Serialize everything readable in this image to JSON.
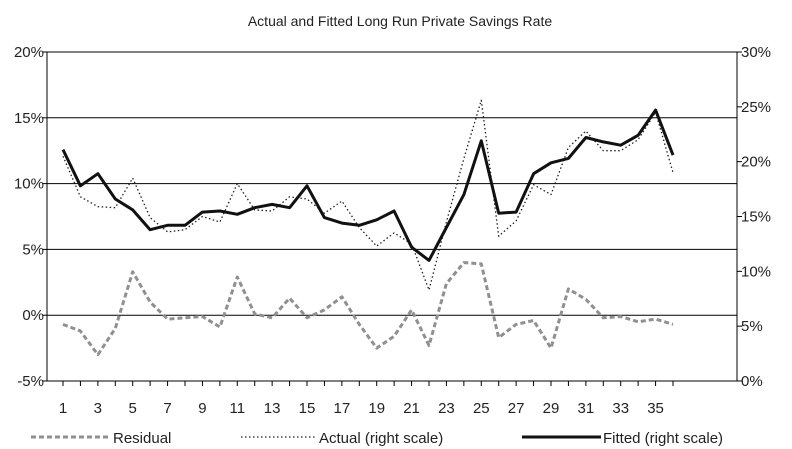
{
  "chart_data": {
    "type": "line",
    "title": "Actual and Fitted Long Run Private Savings Rate",
    "x": [
      1,
      2,
      3,
      4,
      5,
      6,
      7,
      8,
      9,
      10,
      11,
      12,
      13,
      14,
      15,
      16,
      17,
      18,
      19,
      20,
      21,
      22,
      23,
      24,
      25,
      26,
      27,
      28,
      29,
      30,
      31,
      32,
      33,
      34,
      35,
      36
    ],
    "x_tick_labels": [
      "1",
      "3",
      "5",
      "7",
      "9",
      "11",
      "13",
      "15",
      "17",
      "19",
      "21",
      "23",
      "25",
      "27",
      "29",
      "31",
      "33",
      "35"
    ],
    "left_axis": {
      "ylim": [
        -5,
        20
      ],
      "ticks": [
        -5,
        0,
        5,
        10,
        15,
        20
      ],
      "tick_labels": [
        "-5%",
        "0%",
        "5%",
        "10%",
        "15%",
        "20%"
      ]
    },
    "right_axis": {
      "ylim": [
        0,
        30
      ],
      "ticks": [
        0,
        5,
        10,
        15,
        20,
        25,
        30
      ],
      "tick_labels": [
        "0%",
        "5%",
        "10%",
        "15%",
        "20%",
        "25%",
        "30%"
      ]
    },
    "grid": "horizontal",
    "legend_position": "bottom",
    "series": [
      {
        "name": "Residual",
        "axis": "left",
        "style": "dashed",
        "color": "#909090",
        "values": [
          -0.7,
          -1.2,
          -3.0,
          -1.0,
          3.3,
          1.0,
          -0.3,
          -0.2,
          -0.1,
          -0.9,
          2.9,
          0.1,
          -0.2,
          1.3,
          -0.2,
          0.4,
          1.4,
          -0.7,
          -2.5,
          -1.6,
          0.4,
          -2.3,
          2.4,
          4.0,
          3.9,
          -1.7,
          -0.7,
          -0.4,
          -2.5,
          2.0,
          1.2,
          -0.2,
          -0.1,
          -0.5,
          -0.3,
          -0.7
        ]
      },
      {
        "name": "Actual (right scale)",
        "axis": "right",
        "style": "dotted",
        "color": "#222222",
        "values": [
          20.5,
          16.8,
          15.9,
          15.8,
          18.5,
          14.9,
          13.6,
          13.8,
          15.0,
          14.5,
          18.0,
          15.6,
          15.5,
          16.8,
          16.6,
          15.3,
          16.4,
          14.0,
          12.3,
          13.5,
          12.5,
          8.3,
          14.5,
          20.3,
          25.6,
          13.2,
          14.6,
          17.9,
          17.0,
          21.3,
          22.8,
          21.0,
          21.0,
          22.0,
          24.5,
          19.0
        ]
      },
      {
        "name": "Fitted (right scale)",
        "axis": "right",
        "style": "solid",
        "color": "#111111",
        "values": [
          21.1,
          17.8,
          18.9,
          16.6,
          15.6,
          13.8,
          14.2,
          14.2,
          15.4,
          15.5,
          15.2,
          15.8,
          16.1,
          15.8,
          17.8,
          14.9,
          14.4,
          14.2,
          14.7,
          15.5,
          12.2,
          11.0,
          14.0,
          17.0,
          21.9,
          15.3,
          15.4,
          18.9,
          19.9,
          20.3,
          22.2,
          21.8,
          21.5,
          22.4,
          24.7,
          20.6
        ]
      }
    ]
  }
}
